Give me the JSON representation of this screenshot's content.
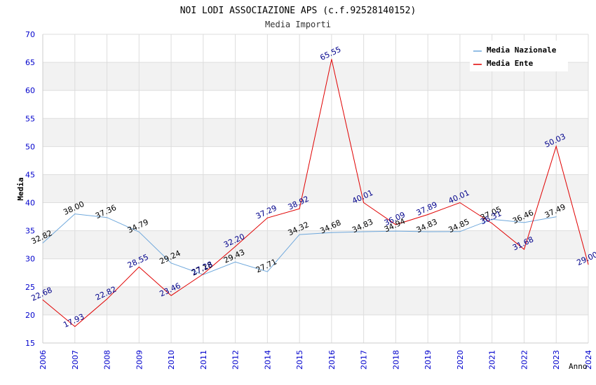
{
  "chart_data": {
    "type": "line",
    "title": "NOI LODI ASSOCIAZIONE APS (c.f.92528140152)",
    "subtitle": "Media Importi",
    "xlabel": "Anno",
    "ylabel": "Media",
    "ylim": [
      15,
      70
    ],
    "yticks": [
      "15",
      "20",
      "25",
      "30",
      "35",
      "40",
      "45",
      "50",
      "55",
      "60",
      "65",
      "70"
    ],
    "categories": [
      "2006",
      "2007",
      "2008",
      "2009",
      "2010",
      "2011",
      "2012",
      "2014",
      "2015",
      "2016",
      "2017",
      "2018",
      "2019",
      "2020",
      "2021",
      "2022",
      "2023",
      "2024"
    ],
    "legend_position": "top-right",
    "series": [
      {
        "name": "Media Nazionale",
        "color": "#6fa8dc",
        "label_color": "#000000",
        "values": [
          32.82,
          38.0,
          37.36,
          34.79,
          29.24,
          27.18,
          29.43,
          27.71,
          34.32,
          34.68,
          34.83,
          34.94,
          34.83,
          34.85,
          37.05,
          36.46,
          37.49,
          null
        ],
        "labels": [
          "32.82",
          "38.00",
          "37.36",
          "34.79",
          "29.24",
          "27.18",
          "29.43",
          "27.71",
          "34.32",
          "34.68",
          "34.83",
          "34.94",
          "34.83",
          "34.85",
          "37.05",
          "36.46",
          "37.49",
          ""
        ]
      },
      {
        "name": "Media Ente",
        "color": "#e00000",
        "label_color": "#00008b",
        "values": [
          22.68,
          17.93,
          22.82,
          28.55,
          23.46,
          27.28,
          32.2,
          37.29,
          38.92,
          65.55,
          40.01,
          36.09,
          37.89,
          40.01,
          36.31,
          31.68,
          50.03,
          29.0
        ],
        "labels": [
          "22.68",
          "17.93",
          "22.82",
          "28.55",
          "23.46",
          "27.28",
          "32.20",
          "37.29",
          "38.92",
          "65.55",
          "40.01",
          "36.09",
          "37.89",
          "40.01",
          "36.31",
          "31.68",
          "50.03",
          "29.00"
        ]
      }
    ]
  },
  "colors": {
    "axis_text": "#0000cc",
    "band": "#f2f2f2",
    "grid": "#dddddd"
  }
}
